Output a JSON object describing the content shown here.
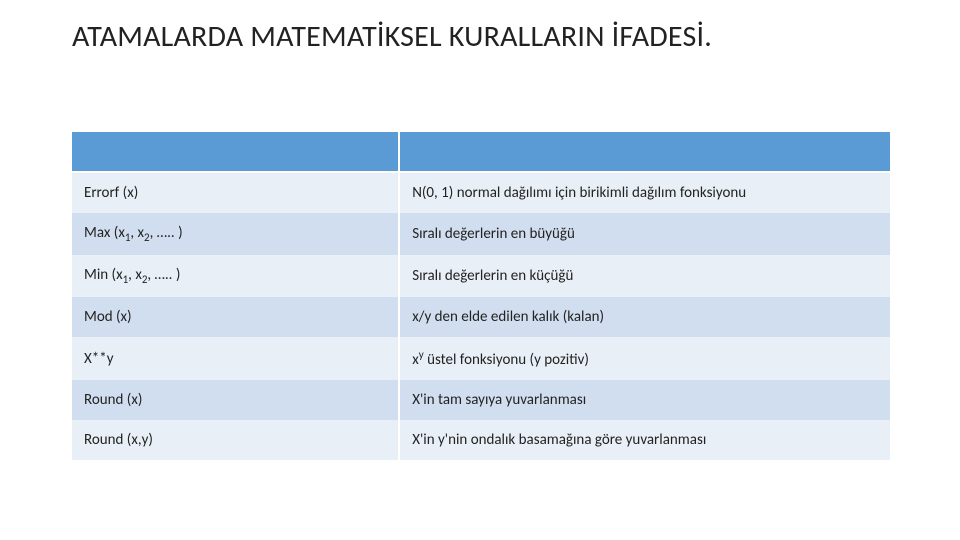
{
  "title": "ATAMALARDA MATEMATİKSEL KURALLARIN İFADESİ.",
  "table": {
    "header_bg": "#5b9bd5",
    "band_a_bg": "#e9eff7",
    "band_b_bg": "#d1deef",
    "text_color": "#222222",
    "title_fontsize": 30,
    "cell_fontsize": 15,
    "rows": [
      {
        "func_plain": "Errorf (x)",
        "desc_plain": "N(0, 1) normal dağılımı için birikimli dağılım fonksiyonu"
      },
      {
        "func_rich": {
          "prefix": "Max (",
          "sub1_base": "x",
          "sub1_sub": "1",
          "sep1": ", ",
          "sub2_base": "x",
          "sub2_sub": "2",
          "suffix": ", ….. )"
        },
        "desc_plain": "Sıralı değerlerin en büyüğü"
      },
      {
        "func_rich": {
          "prefix": "Min (",
          "sub1_base": "x",
          "sub1_sub": "1",
          "sep1": ", ",
          "sub2_base": "x",
          "sub2_sub": "2",
          "suffix": ", ….. )"
        },
        "desc_plain": "Sıralı değerlerin en küçüğü"
      },
      {
        "func_plain": "Mod (x)",
        "desc_plain": "x/y den elde edilen kalık (kalan)"
      },
      {
        "func_plain": "X**y",
        "desc_rich": {
          "base": "x",
          "sup": "y",
          "after": " üstel fonksiyonu (y pozitiv)"
        }
      },
      {
        "func_plain": "Round (x)",
        "desc_plain": "X'in tam sayıya yuvarlanması"
      },
      {
        "func_plain": "Round (x,y)",
        "desc_plain": "X'in y'nin ondalık basamağına göre yuvarlanması"
      }
    ]
  }
}
